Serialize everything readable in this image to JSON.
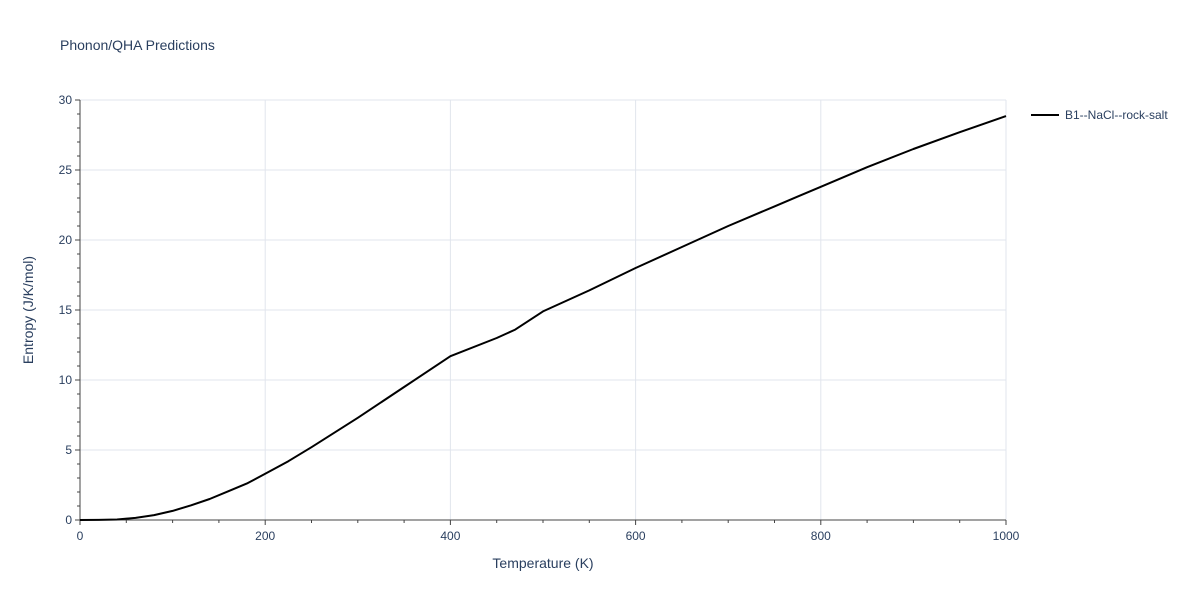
{
  "chart_data": {
    "type": "line",
    "title": "Phonon/QHA Predictions",
    "xlabel": "Temperature (K)",
    "ylabel": "Entropy (J/K/mol)",
    "xlim": [
      0,
      1000
    ],
    "ylim": [
      0,
      30
    ],
    "x_ticks": [
      0,
      200,
      400,
      600,
      800,
      1000
    ],
    "y_ticks": [
      0,
      5,
      10,
      15,
      20,
      25,
      30
    ],
    "grid": true,
    "legend_position": "top-right outside",
    "series": [
      {
        "name": "B1--NaCl--rock-salt",
        "color": "#000000",
        "x": [
          0,
          20,
          40,
          60,
          80,
          100,
          120,
          140,
          160,
          180,
          200,
          225,
          250,
          300,
          350,
          400,
          450,
          470,
          500,
          550,
          600,
          650,
          700,
          750,
          775,
          800,
          850,
          900,
          950,
          1000
        ],
        "y": [
          0,
          0.01,
          0.04,
          0.15,
          0.35,
          0.65,
          1.05,
          1.5,
          2.05,
          2.6,
          3.3,
          4.2,
          5.2,
          7.3,
          9.5,
          11.7,
          13.0,
          13.6,
          14.9,
          16.4,
          18.0,
          19.5,
          21.0,
          22.4,
          23.1,
          23.8,
          25.2,
          26.5,
          27.7,
          28.85
        ]
      }
    ]
  },
  "colors": {
    "axis_text": "#2a3f5f",
    "grid": "#e1e5ed",
    "background": "#ffffff"
  }
}
